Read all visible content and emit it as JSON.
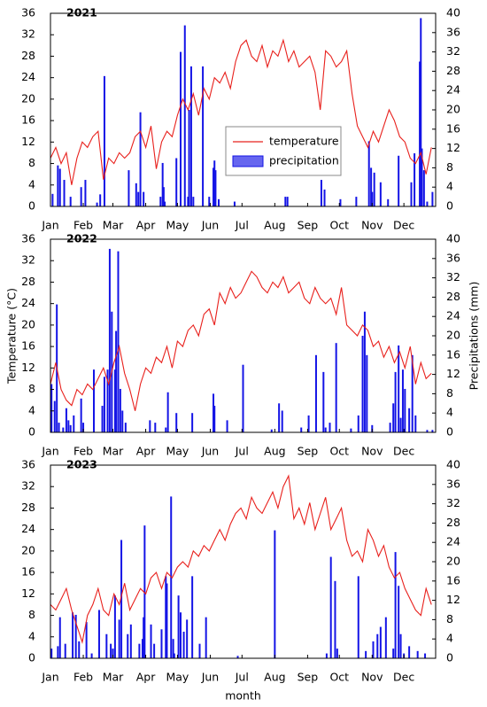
{
  "chart_data": [
    {
      "type": "combo",
      "title": "2021",
      "legend": true,
      "xlim": [
        1,
        365
      ],
      "xticks": [
        {
          "value": 1,
          "label": "Jan"
        },
        {
          "value": 32,
          "label": "Feb"
        },
        {
          "value": 60,
          "label": "Mar"
        },
        {
          "value": 91,
          "label": "Apr"
        },
        {
          "value": 121,
          "label": "May"
        },
        {
          "value": 152,
          "label": "Jun"
        },
        {
          "value": 182,
          "label": "Jul"
        },
        {
          "value": 213,
          "label": "Aug"
        },
        {
          "value": 244,
          "label": "Sep"
        },
        {
          "value": 274,
          "label": "Oct"
        },
        {
          "value": 305,
          "label": "Nov"
        },
        {
          "value": 335,
          "label": "Dec"
        }
      ],
      "ylim": [
        0,
        36
      ],
      "yticks": [
        0,
        4,
        8,
        12,
        16,
        20,
        24,
        28,
        32,
        36
      ],
      "y2lim": [
        0,
        40
      ],
      "y2ticks": [
        0,
        4,
        8,
        12,
        16,
        20,
        24,
        28,
        32,
        36,
        40
      ],
      "series": [
        {
          "name": "temperature",
          "type": "line",
          "color": "#e8201c",
          "x": [
            1,
            6,
            11,
            16,
            21,
            26,
            31,
            36,
            41,
            46,
            51,
            56,
            61,
            66,
            71,
            76,
            81,
            86,
            91,
            96,
            101,
            106,
            111,
            116,
            121,
            126,
            131,
            136,
            141,
            146,
            151,
            156,
            161,
            166,
            171,
            176,
            181,
            186,
            191,
            196,
            201,
            206,
            211,
            216,
            221,
            226,
            231,
            236,
            241,
            246,
            251,
            256,
            261,
            266,
            271,
            276,
            281,
            286,
            291,
            296,
            301,
            306,
            311,
            316,
            321,
            326,
            331,
            336,
            341,
            346,
            351,
            356,
            361
          ],
          "values": [
            9,
            11,
            8,
            10,
            4,
            9,
            12,
            11,
            13,
            14,
            5,
            9,
            8,
            10,
            9,
            10,
            13,
            14,
            11,
            15,
            7,
            12,
            14,
            13,
            17,
            20,
            18,
            21,
            17,
            22,
            20,
            24,
            23,
            25,
            22,
            27,
            30,
            31,
            28,
            27,
            30,
            26,
            29,
            28,
            31,
            27,
            29,
            26,
            27,
            28,
            25,
            18,
            29,
            28,
            26,
            27,
            29,
            21,
            15,
            13,
            11,
            14,
            12,
            15,
            18,
            16,
            13,
            12,
            9,
            8,
            10,
            6,
            11
          ]
        },
        {
          "name": "precipitation",
          "type": "bar",
          "axis": "y2",
          "color": "#1414e6",
          "x": [
            3,
            8,
            10,
            14,
            20,
            30,
            34,
            45,
            48,
            52,
            75,
            82,
            84,
            86,
            89,
            105,
            107,
            108,
            109,
            120,
            124,
            128,
            131,
            132,
            134,
            136,
            145,
            151,
            155,
            156,
            157,
            160,
            175,
            223,
            225,
            257,
            260,
            275,
            290,
            302,
            304,
            305,
            307,
            313,
            320,
            330,
            342,
            345,
            350,
            351,
            352,
            354,
            357,
            362
          ],
          "values": [
            2.6,
            8.5,
            7.8,
            5.5,
            2,
            4,
            5.5,
            0.8,
            2.5,
            27,
            7.5,
            4.8,
            3,
            19.5,
            3,
            2,
            9,
            4,
            1,
            10,
            32,
            37.5,
            2,
            20,
            29,
            2,
            29,
            2,
            8,
            9.5,
            7.5,
            1.5,
            1,
            2,
            2,
            5.5,
            3.5,
            1.5,
            2,
            13.5,
            8,
            3,
            7,
            5,
            1.5,
            10.5,
            5,
            11,
            30,
            39,
            12,
            7.5,
            1,
            3
          ]
        }
      ]
    },
    {
      "type": "combo",
      "title": "2022",
      "ylabel": "Temperature (°C)",
      "y2label": "Precipitations (mm)",
      "xlim": [
        1,
        365
      ],
      "xticks": [
        {
          "value": 1,
          "label": "Jan"
        },
        {
          "value": 32,
          "label": "Feb"
        },
        {
          "value": 60,
          "label": "Mar"
        },
        {
          "value": 91,
          "label": "Apr"
        },
        {
          "value": 121,
          "label": "May"
        },
        {
          "value": 152,
          "label": "Jun"
        },
        {
          "value": 182,
          "label": "Jul"
        },
        {
          "value": 213,
          "label": "Aug"
        },
        {
          "value": 244,
          "label": "Sep"
        },
        {
          "value": 274,
          "label": "Oct"
        },
        {
          "value": 305,
          "label": "Nov"
        },
        {
          "value": 335,
          "label": "Dec"
        }
      ],
      "ylim": [
        0,
        36
      ],
      "yticks": [
        0,
        4,
        8,
        12,
        16,
        20,
        24,
        28,
        32,
        36
      ],
      "y2lim": [
        0,
        40
      ],
      "y2ticks": [
        0,
        4,
        8,
        12,
        16,
        20,
        24,
        28,
        32,
        36,
        40
      ],
      "series": [
        {
          "type": "line",
          "color": "#e8201c",
          "x": [
            1,
            6,
            11,
            16,
            21,
            26,
            31,
            36,
            41,
            46,
            51,
            56,
            61,
            66,
            71,
            76,
            81,
            86,
            91,
            96,
            101,
            106,
            111,
            116,
            121,
            126,
            131,
            136,
            141,
            146,
            151,
            156,
            161,
            166,
            171,
            176,
            181,
            186,
            191,
            196,
            201,
            206,
            211,
            216,
            221,
            226,
            231,
            236,
            241,
            246,
            251,
            256,
            261,
            266,
            271,
            276,
            281,
            286,
            291,
            296,
            301,
            306,
            311,
            316,
            321,
            326,
            331,
            336,
            341,
            346,
            351,
            356,
            361
          ],
          "values": [
            9,
            13,
            8,
            6,
            5,
            8,
            7,
            9,
            8,
            10,
            12,
            9,
            13,
            16,
            11,
            8,
            4,
            9,
            12,
            11,
            14,
            13,
            16,
            12,
            17,
            16,
            19,
            20,
            18,
            22,
            23,
            20,
            26,
            24,
            27,
            25,
            26,
            28,
            30,
            29,
            27,
            26,
            28,
            27,
            29,
            26,
            27,
            28,
            25,
            24,
            27,
            25,
            24,
            25,
            22,
            27,
            20,
            19,
            18,
            20,
            19,
            16,
            17,
            14,
            16,
            13,
            15,
            12,
            16,
            9,
            13,
            10,
            11
          ]
        },
        {
          "type": "bar",
          "axis": "y2",
          "color": "#1414e6",
          "x": [
            2,
            5,
            7,
            9,
            13,
            16,
            18,
            20,
            23,
            30,
            32,
            42,
            50,
            52,
            55,
            57,
            59,
            62,
            63,
            65,
            67,
            69,
            72,
            95,
            100,
            110,
            112,
            120,
            135,
            155,
            156,
            168,
            183,
            210,
            217,
            220,
            238,
            245,
            252,
            259,
            261,
            265,
            271,
            285,
            292,
            296,
            298,
            300,
            305,
            322,
            325,
            327,
            330,
            332,
            334,
            336,
            340,
            343,
            346,
            357,
            362
          ],
          "values": [
            10,
            6.5,
            26.5,
            2,
            1,
            5,
            2.5,
            1.5,
            3.5,
            7,
            2,
            13,
            5.5,
            11.5,
            13,
            38,
            25,
            13,
            21,
            37.5,
            9,
            4.5,
            2,
            2.5,
            2,
            1,
            8.3,
            4,
            4,
            8,
            5.5,
            2.5,
            14,
            0.6,
            6,
            4.5,
            1,
            3.5,
            16,
            12.5,
            1,
            2,
            18.5,
            0.8,
            3.5,
            20,
            25,
            16,
            1.5,
            2,
            6,
            12.5,
            18,
            3,
            13,
            9,
            5,
            16,
            3.5,
            0.5,
            0.5
          ]
        }
      ]
    },
    {
      "type": "combo",
      "title": "2023",
      "xlabel": "month",
      "xlim": [
        1,
        365
      ],
      "xticks": [
        {
          "value": 1,
          "label": "Jan"
        },
        {
          "value": 32,
          "label": "Feb"
        },
        {
          "value": 60,
          "label": "Mar"
        },
        {
          "value": 91,
          "label": "Apr"
        },
        {
          "value": 121,
          "label": "May"
        },
        {
          "value": 152,
          "label": "Jun"
        },
        {
          "value": 182,
          "label": "Jul"
        },
        {
          "value": 213,
          "label": "Aug"
        },
        {
          "value": 244,
          "label": "Sep"
        },
        {
          "value": 274,
          "label": "Oct"
        },
        {
          "value": 305,
          "label": "Nov"
        },
        {
          "value": 335,
          "label": "Dec"
        }
      ],
      "ylim": [
        0,
        36
      ],
      "yticks": [
        0,
        4,
        8,
        12,
        16,
        20,
        24,
        28,
        32,
        36
      ],
      "y2lim": [
        0,
        40
      ],
      "y2ticks": [
        0,
        4,
        8,
        12,
        16,
        20,
        24,
        28,
        32,
        36,
        40
      ],
      "series": [
        {
          "type": "line",
          "color": "#e8201c",
          "x": [
            1,
            6,
            11,
            16,
            21,
            26,
            31,
            36,
            41,
            46,
            51,
            56,
            61,
            66,
            71,
            76,
            81,
            86,
            91,
            96,
            101,
            106,
            111,
            116,
            121,
            126,
            131,
            136,
            141,
            146,
            151,
            156,
            161,
            166,
            171,
            176,
            181,
            186,
            191,
            196,
            201,
            206,
            211,
            216,
            221,
            226,
            231,
            236,
            241,
            246,
            251,
            256,
            261,
            266,
            271,
            276,
            281,
            286,
            291,
            296,
            301,
            306,
            311,
            316,
            321,
            326,
            331,
            336,
            341,
            346,
            351,
            356,
            361
          ],
          "values": [
            10,
            9,
            11,
            13,
            9,
            6,
            3,
            8,
            10,
            13,
            9,
            8,
            12,
            10,
            14,
            9,
            11,
            13,
            12,
            15,
            16,
            13,
            16,
            15,
            17,
            18,
            17,
            20,
            19,
            21,
            20,
            22,
            24,
            22,
            25,
            27,
            28,
            26,
            30,
            28,
            27,
            29,
            31,
            28,
            32,
            34,
            26,
            28,
            25,
            29,
            24,
            27,
            30,
            24,
            26,
            28,
            22,
            19,
            20,
            18,
            24,
            22,
            19,
            21,
            17,
            15,
            16,
            13,
            11,
            9,
            8,
            13,
            10
          ]
        },
        {
          "type": "bar",
          "axis": "y2",
          "color": "#1414e6",
          "x": [
            2,
            8,
            10,
            15,
            22,
            25,
            28,
            35,
            40,
            47,
            54,
            58,
            60,
            62,
            66,
            68,
            74,
            77,
            85,
            88,
            89,
            90,
            96,
            99,
            106,
            110,
            111,
            115,
            117,
            118,
            122,
            124,
            127,
            130,
            135,
            142,
            148,
            178,
            213,
            262,
            266,
            270,
            272,
            292,
            299,
            306,
            310,
            313,
            318,
            325,
            327,
            330,
            332,
            335,
            340,
            348,
            355
          ],
          "values": [
            2,
            2.5,
            8.5,
            3,
            9.5,
            9,
            3.5,
            7.5,
            1,
            10,
            5,
            3,
            2,
            13,
            8,
            24.5,
            5,
            7,
            3,
            4,
            8.5,
            27.5,
            7,
            3,
            6,
            17,
            15.5,
            33.5,
            4,
            1,
            13,
            9.5,
            5.5,
            8,
            17,
            3,
            8.5,
            0.5,
            26.5,
            1,
            21,
            16,
            2,
            17,
            1.5,
            3.5,
            5,
            6.5,
            8.5,
            2,
            22,
            15,
            5,
            1,
            2.5,
            1.5,
            1
          ]
        }
      ]
    }
  ]
}
